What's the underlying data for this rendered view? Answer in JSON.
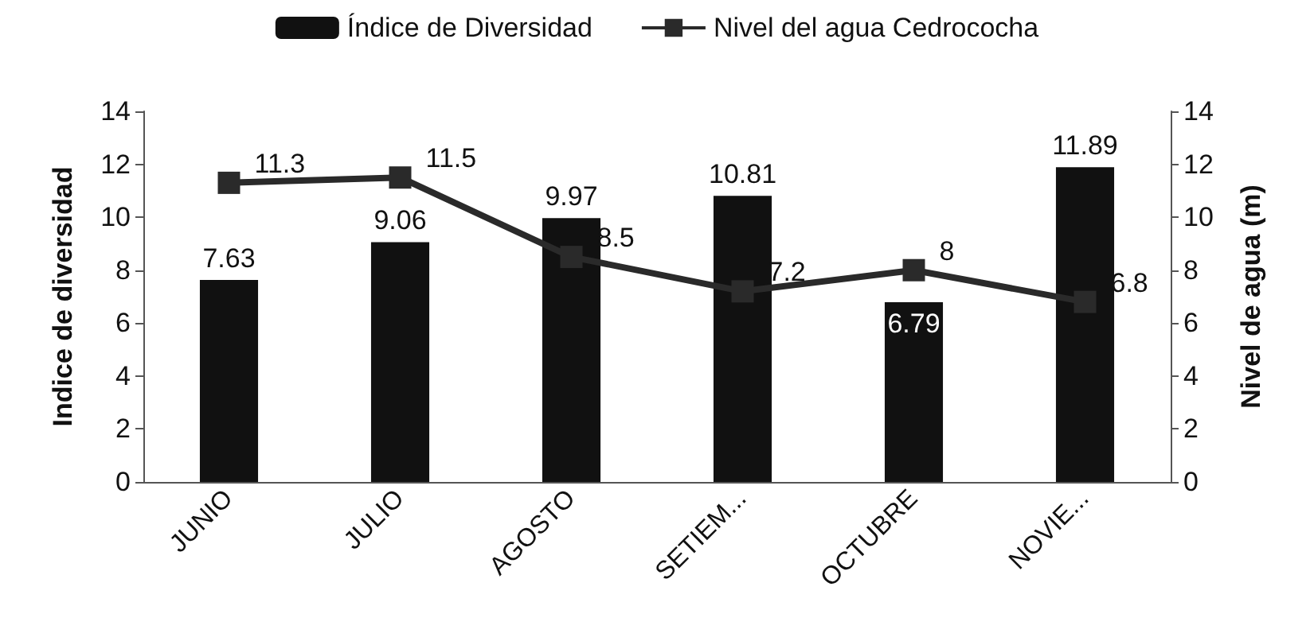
{
  "chart_data": {
    "type": "bar",
    "categories": [
      "JUNIO",
      "JULIO",
      "AGOSTO",
      "SETIEM...",
      "OCTUBRE",
      "NOVIE..."
    ],
    "series": [
      {
        "name": "Índice de Diversidad",
        "color": "#111111",
        "values": [
          7.63,
          9.06,
          9.97,
          10.81,
          6.79,
          11.89
        ]
      },
      {
        "name": "Nivel del agua Cedrococha",
        "type": "line",
        "axis": "y2",
        "color": "#2a2a2a",
        "values": [
          11.3,
          11.5,
          8.5,
          7.2,
          8,
          6.8
        ]
      }
    ],
    "ylabel": "Indice de diversidad",
    "y2label": "Nivel de agua (m)",
    "ylim": [
      0,
      14
    ],
    "yticks": [
      0,
      2,
      4,
      6,
      8,
      10,
      12,
      14
    ],
    "y2lim": [
      0,
      14
    ],
    "y2ticks": [
      0,
      2,
      4,
      6,
      8,
      10,
      12,
      14
    ],
    "data_labels": true,
    "legend": "top",
    "marker": "square",
    "line_style": "solid",
    "grid": false
  }
}
